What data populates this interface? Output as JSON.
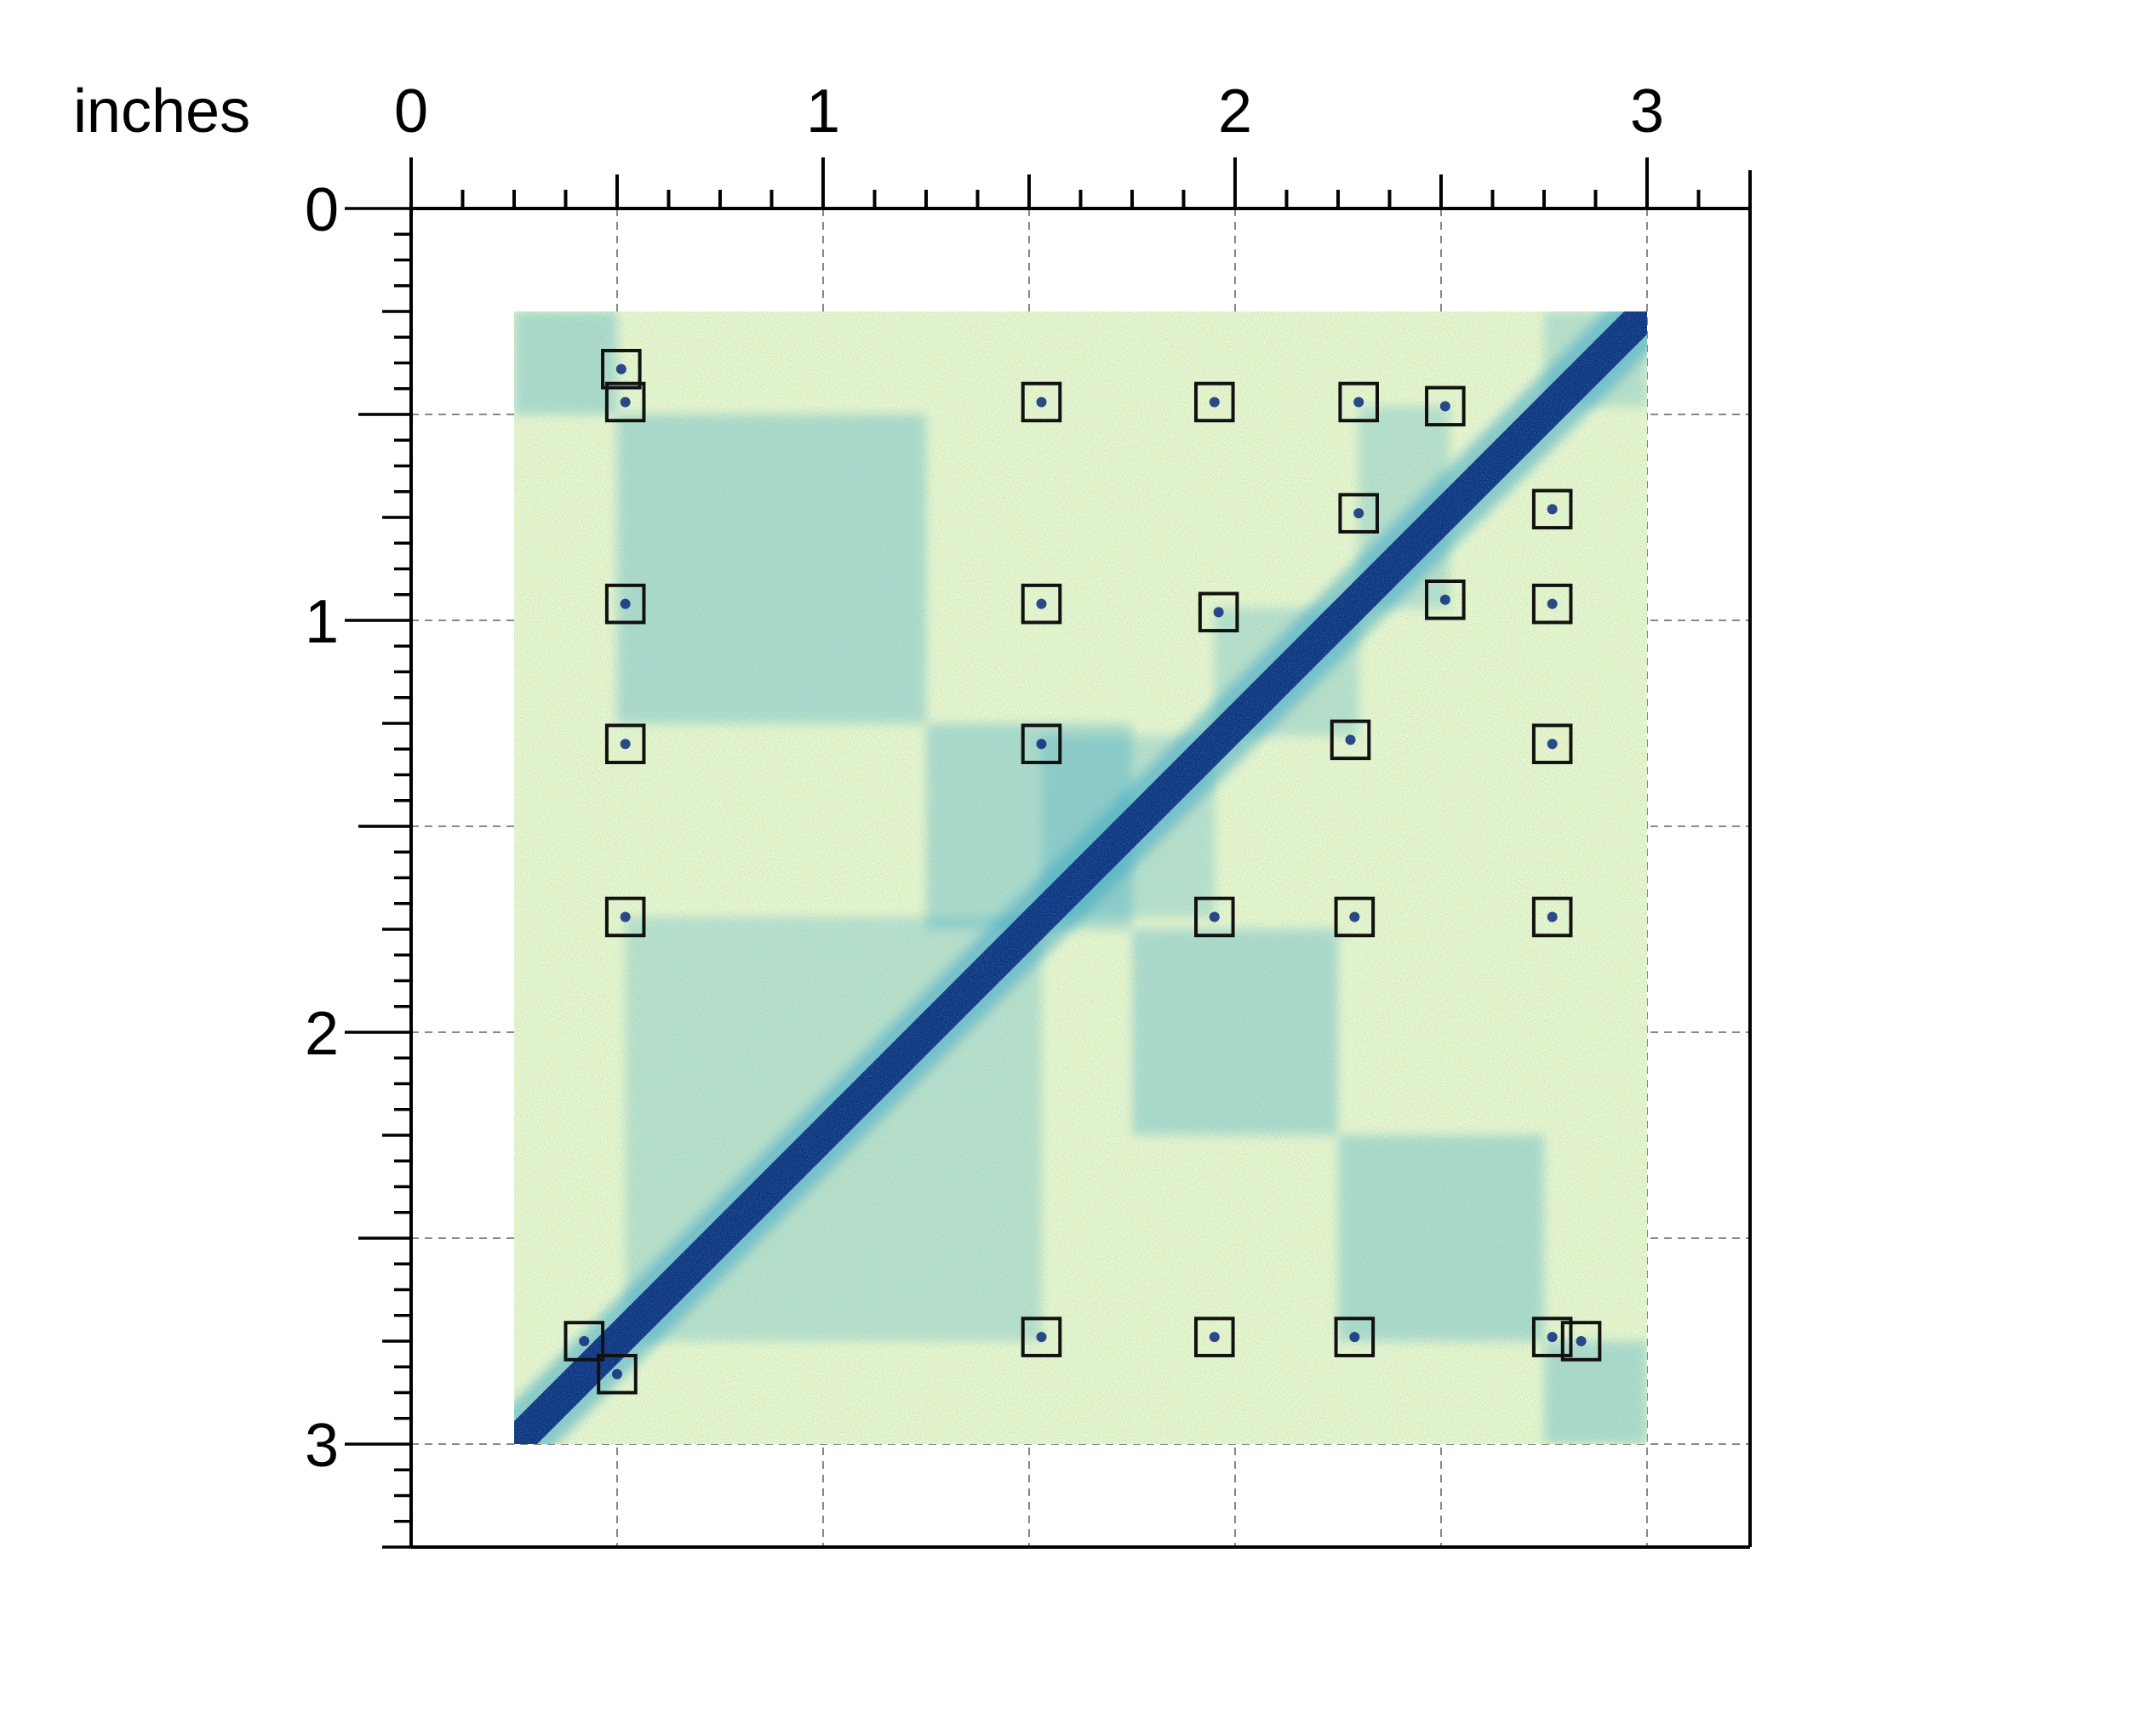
{
  "chart_data": {
    "type": "heatmap",
    "units_label": "inches",
    "x_ticks": [
      0,
      1,
      2,
      3
    ],
    "y_ticks": [
      0,
      1,
      2,
      3
    ],
    "xlim": [
      0,
      3.25
    ],
    "ylim": [
      0,
      3.25
    ],
    "y_inverted": true,
    "grid": true,
    "grid_step": 0.5,
    "matrix_extent": {
      "x": [
        0.25,
        3.0
      ],
      "y": [
        0.25,
        3.0
      ]
    },
    "colormap": {
      "low": "#f7fbc9",
      "mid": "#41a7c4",
      "high": "#0c2a7a"
    },
    "diagonal_blocks": [
      {
        "start": 0.25,
        "end": 0.5
      },
      {
        "start": 0.5,
        "end": 1.25
      },
      {
        "start": 1.25,
        "end": 1.75
      },
      {
        "start": 1.75,
        "end": 2.25
      },
      {
        "start": 2.25,
        "end": 2.75
      },
      {
        "start": 2.75,
        "end": 3.0
      }
    ],
    "outer_domains": [
      {
        "x0": 0.52,
        "x1": 1.53,
        "y0": 1.72,
        "y1": 2.75
      },
      {
        "x0": 1.53,
        "x1": 1.95,
        "y0": 1.28,
        "y1": 1.72
      },
      {
        "x0": 1.95,
        "x1": 2.3,
        "y0": 0.97,
        "y1": 1.28
      },
      {
        "x0": 2.3,
        "x1": 2.52,
        "y0": 0.48,
        "y1": 0.97
      },
      {
        "x0": 2.75,
        "x1": 3.0,
        "y0": 0.25,
        "y1": 0.48
      }
    ],
    "loop_boxes": [
      {
        "x": 0.51,
        "y": 0.39
      },
      {
        "x": 0.52,
        "y": 0.47
      },
      {
        "x": 1.53,
        "y": 0.47
      },
      {
        "x": 1.95,
        "y": 0.47
      },
      {
        "x": 2.3,
        "y": 0.47
      },
      {
        "x": 2.51,
        "y": 0.48
      },
      {
        "x": 2.3,
        "y": 0.74
      },
      {
        "x": 2.77,
        "y": 0.73
      },
      {
        "x": 0.52,
        "y": 0.96
      },
      {
        "x": 1.53,
        "y": 0.96
      },
      {
        "x": 1.96,
        "y": 0.98
      },
      {
        "x": 2.51,
        "y": 0.95
      },
      {
        "x": 2.77,
        "y": 0.96
      },
      {
        "x": 0.52,
        "y": 1.3
      },
      {
        "x": 1.53,
        "y": 1.3
      },
      {
        "x": 2.28,
        "y": 1.29
      },
      {
        "x": 2.77,
        "y": 1.3
      },
      {
        "x": 0.52,
        "y": 1.72
      },
      {
        "x": 1.95,
        "y": 1.72
      },
      {
        "x": 2.29,
        "y": 1.72
      },
      {
        "x": 2.77,
        "y": 1.72
      },
      {
        "x": 0.42,
        "y": 2.75
      },
      {
        "x": 0.5,
        "y": 2.83
      },
      {
        "x": 1.53,
        "y": 2.74
      },
      {
        "x": 1.95,
        "y": 2.74
      },
      {
        "x": 2.29,
        "y": 2.74
      },
      {
        "x": 2.77,
        "y": 2.74
      },
      {
        "x": 2.84,
        "y": 2.75
      }
    ],
    "box_color": "#111111"
  }
}
